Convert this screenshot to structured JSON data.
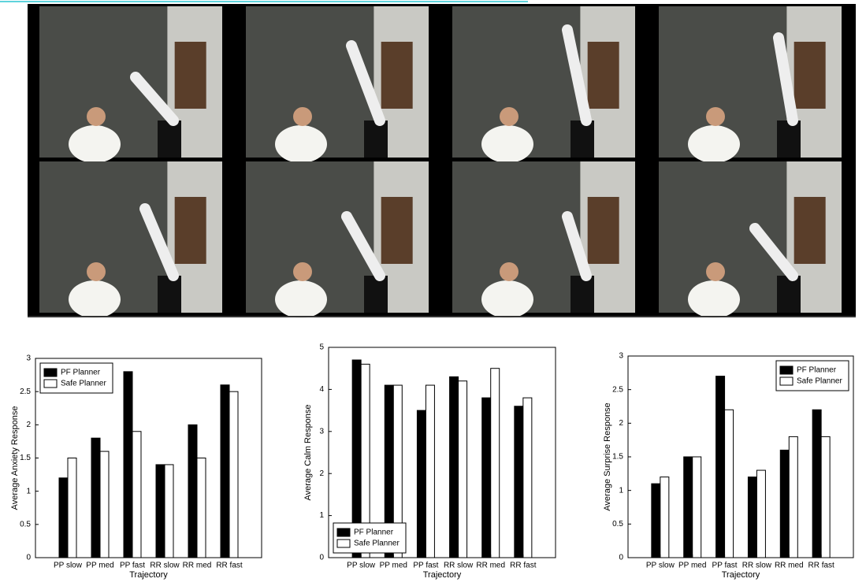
{
  "chart_data": [
    {
      "type": "bar",
      "ylabel": "Average Anxiety Response",
      "xlabel": "Trajectory",
      "categories": [
        "PP slow",
        "PP med",
        "PP fast",
        "RR slow",
        "RR med",
        "RR fast"
      ],
      "series": [
        {
          "name": "PF Planner",
          "color": "#000000",
          "values": [
            1.2,
            1.8,
            2.8,
            1.4,
            2.0,
            2.6
          ]
        },
        {
          "name": "Safe Planner",
          "color": "#ffffff",
          "values": [
            1.5,
            1.6,
            1.9,
            1.4,
            1.5,
            2.5
          ]
        }
      ],
      "ylim": [
        0,
        3
      ],
      "yticks": [
        0,
        0.5,
        1,
        1.5,
        2,
        2.5,
        3
      ],
      "legend": "top-left"
    },
    {
      "type": "bar",
      "ylabel": "Average Calm Response",
      "xlabel": "Trajectory",
      "categories": [
        "PP slow",
        "PP med",
        "PP fast",
        "RR slow",
        "RR med",
        "RR fast"
      ],
      "series": [
        {
          "name": "PF Planner",
          "color": "#000000",
          "values": [
            4.7,
            4.1,
            3.5,
            4.3,
            3.8,
            3.6
          ]
        },
        {
          "name": "Safe Planner",
          "color": "#ffffff",
          "values": [
            4.6,
            4.1,
            4.1,
            4.2,
            4.5,
            3.8
          ]
        }
      ],
      "ylim": [
        0,
        5
      ],
      "yticks": [
        0,
        1,
        2,
        3,
        4,
        5
      ],
      "legend": "bottom-left"
    },
    {
      "type": "bar",
      "ylabel": "Average Surprise Response",
      "xlabel": "Trajectory",
      "categories": [
        "PP slow",
        "PP med",
        "PP fast",
        "RR slow",
        "RR med",
        "RR fast"
      ],
      "series": [
        {
          "name": "PF Planner",
          "color": "#000000",
          "values": [
            1.1,
            1.5,
            2.7,
            1.2,
            1.6,
            2.2
          ]
        },
        {
          "name": "Safe Planner",
          "color": "#ffffff",
          "values": [
            1.2,
            1.5,
            2.2,
            1.3,
            1.8,
            1.8
          ]
        }
      ],
      "ylim": [
        0,
        3
      ],
      "yticks": [
        0,
        0.5,
        1,
        1.5,
        2,
        2.5,
        3
      ],
      "legend": "top-right"
    }
  ]
}
